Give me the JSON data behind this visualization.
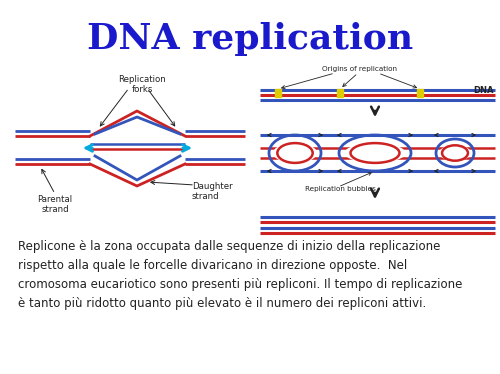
{
  "title": "DNA replication",
  "title_color": "#1a1acc",
  "title_fontsize": 26,
  "bg_color": "#ffffff",
  "body_text": "Replicone è la zona occupata dalle sequenze di inizio della replicazione\nrispetto alla quale le forcelle divaricano in direzione opposte.  Nel\ncromosoma eucariotico sono presenti più repliconi. Il tempo di replicazione\nè tanto più ridotto quanto più elevato è il numero dei repliconi attivi.",
  "body_fontsize": 8.5,
  "label_replication_forks": "Replication\nforks",
  "label_daughter_strand": "Daughter\nstrand",
  "label_parental_strand": "Parental\nstrand",
  "label_origins": "Origins of replication",
  "label_dna": "DNA",
  "label_replication_bubbles": "Replication bubbles",
  "blue_color": "#3355bb",
  "red_color": "#cc2222",
  "cyan_color": "#00aadd",
  "yellow_color": "#ddcc00",
  "dark_color": "#222222"
}
